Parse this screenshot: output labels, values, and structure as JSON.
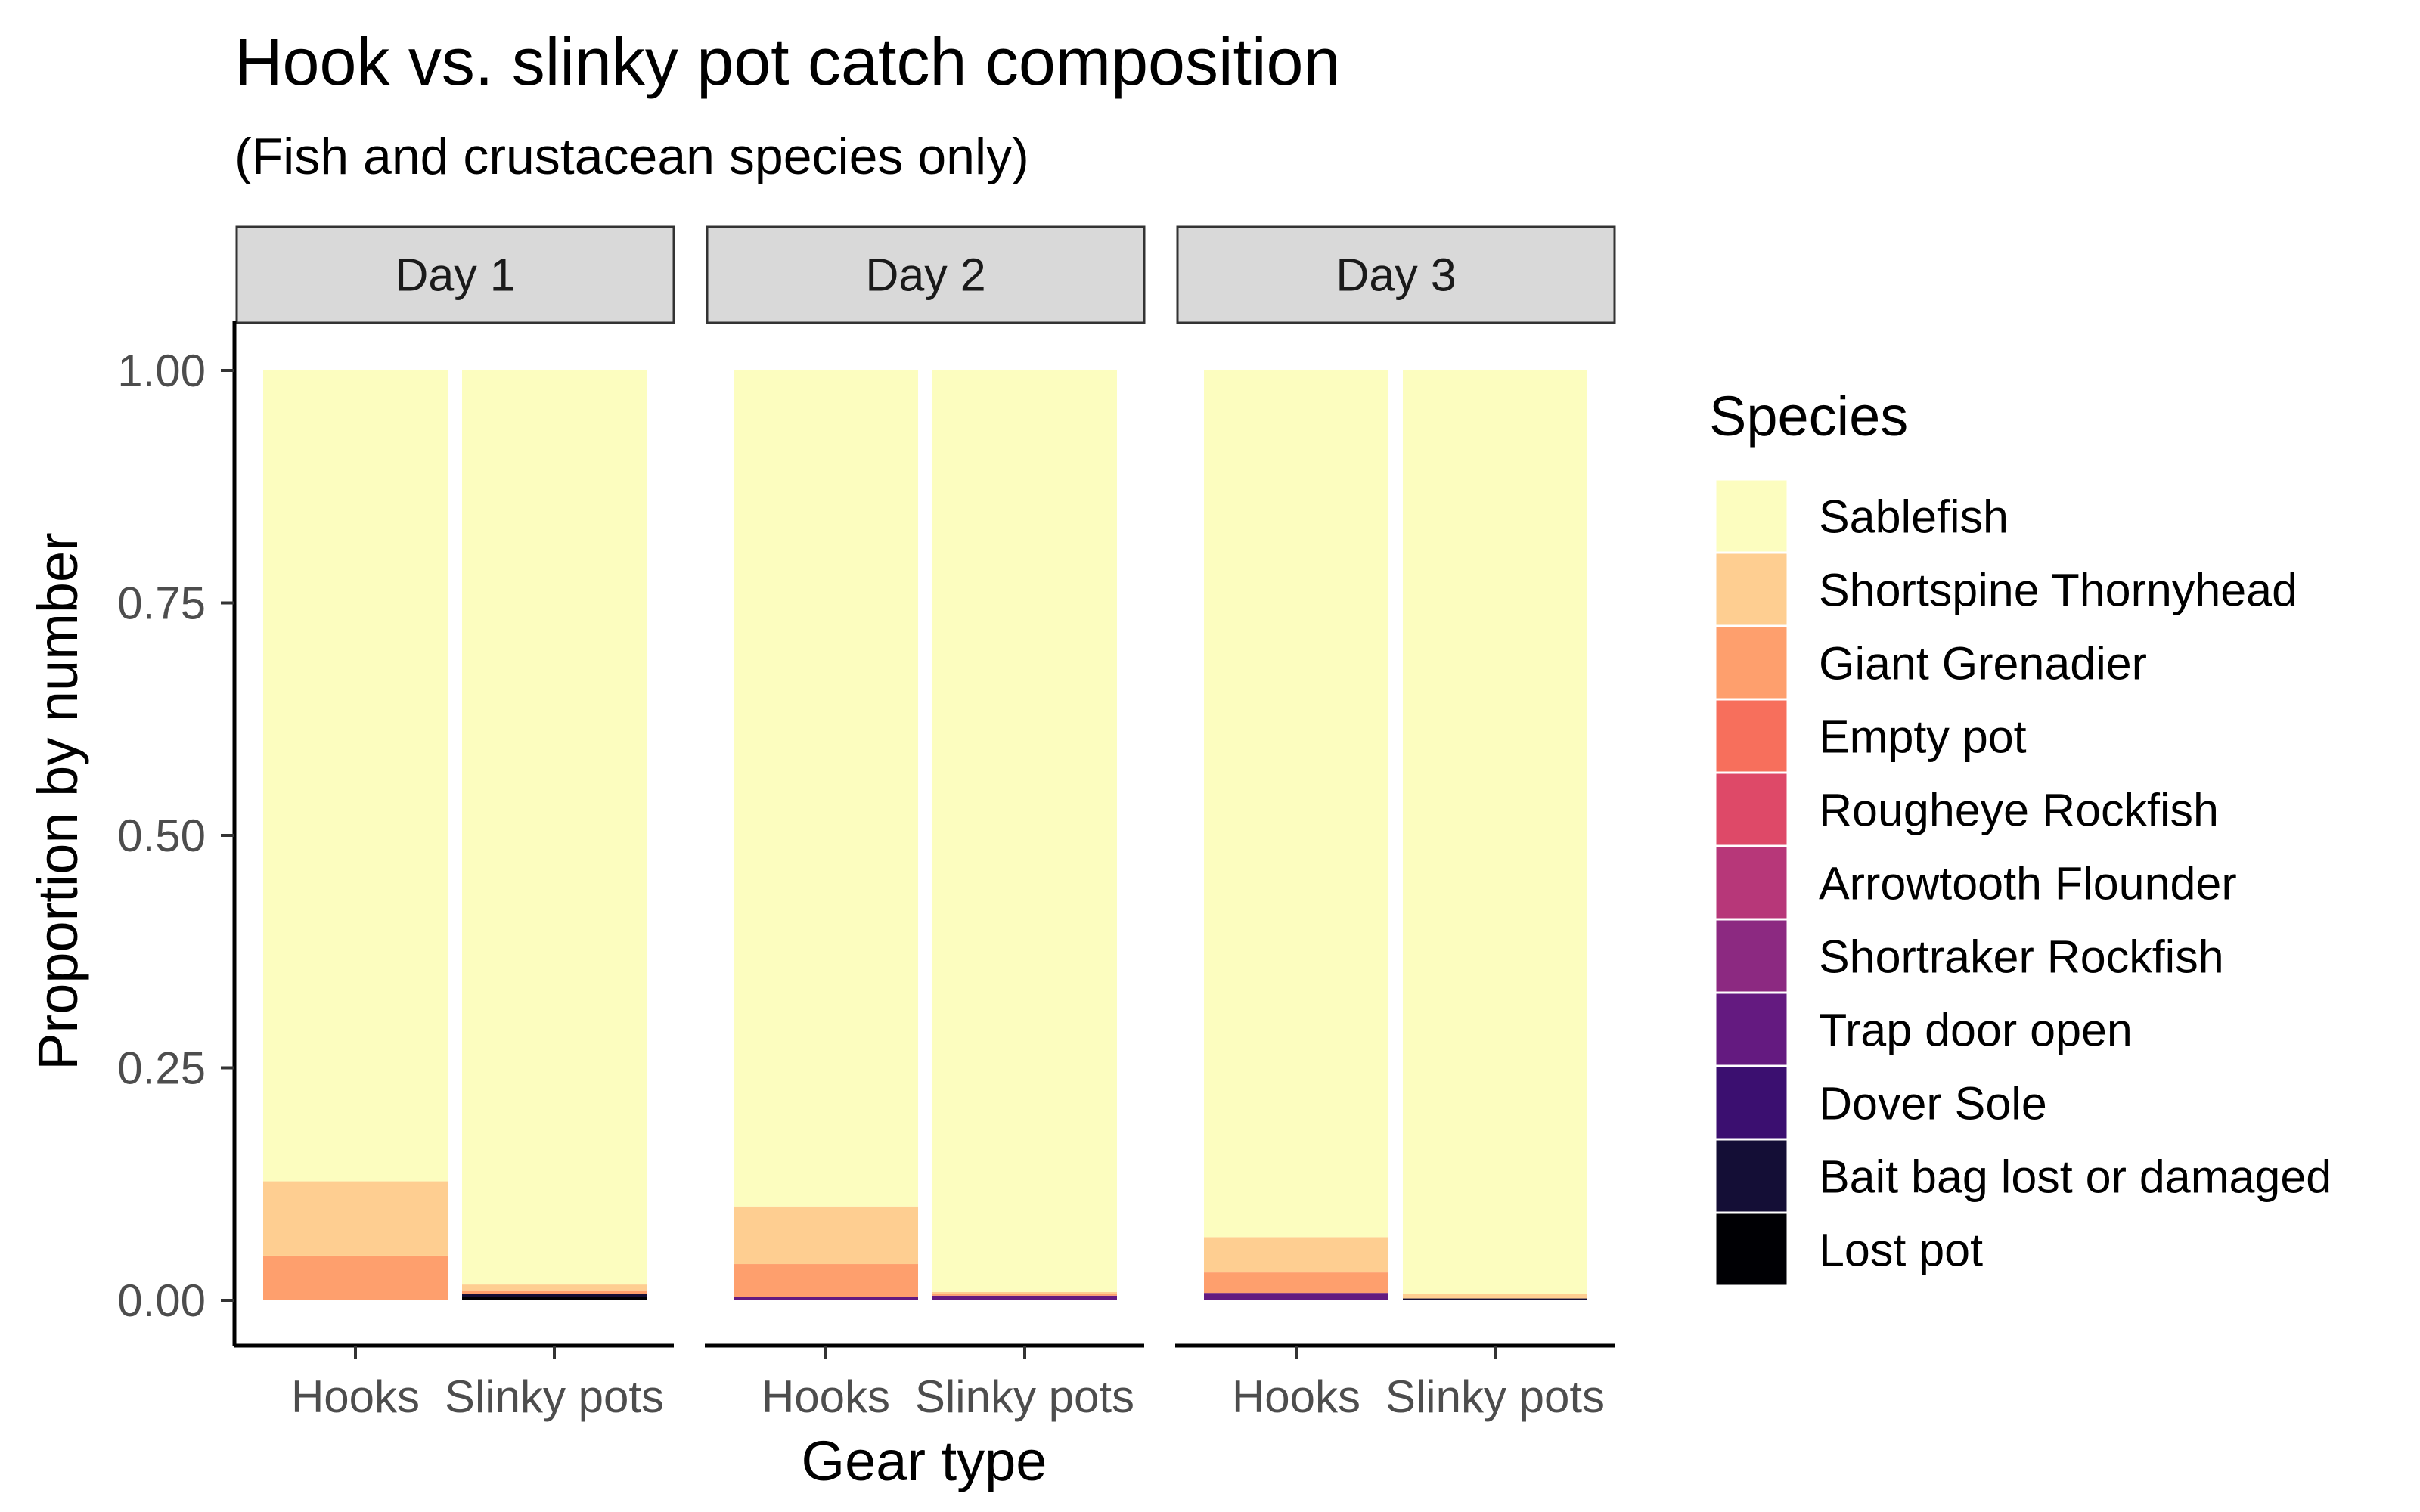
{
  "chart_data": {
    "type": "bar",
    "stacked": true,
    "title": "Hook vs. slinky pot catch composition",
    "subtitle": "(Fish and crustacean species only)",
    "xlabel": "Gear type",
    "ylabel": "Proportion by number",
    "ylim": [
      0,
      1
    ],
    "y_ticks": [
      "0.00",
      "0.25",
      "0.50",
      "0.75",
      "1.00"
    ],
    "categories": [
      "Hooks",
      "Slinky pots"
    ],
    "facets": [
      "Day 1",
      "Day 2",
      "Day 3"
    ],
    "legend_title": "Species",
    "legend_position": "right",
    "grid": false,
    "species": [
      {
        "name": "Sablefish",
        "color": "#FCFDBF"
      },
      {
        "name": "Shortspine Thornyhead",
        "color": "#FECE91"
      },
      {
        "name": "Giant Grenadier",
        "color": "#FE9F6D"
      },
      {
        "name": "Empty pot",
        "color": "#F76F5C"
      },
      {
        "name": "Rougheye Rockfish",
        "color": "#DE4968"
      },
      {
        "name": "Arrowtooth Flounder",
        "color": "#B73779"
      },
      {
        "name": "Shortraker Rockfish",
        "color": "#8C2981"
      },
      {
        "name": "Trap door open",
        "color": "#641A80"
      },
      {
        "name": "Dover Sole",
        "color": "#3B0F70"
      },
      {
        "name": "Bait bag lost or damaged",
        "color": "#140E36"
      },
      {
        "name": "Lost pot",
        "color": "#000004"
      }
    ],
    "values": {
      "Day 1": {
        "Hooks": [
          0.872,
          0.08,
          0.048,
          0,
          0,
          0,
          0,
          0,
          0,
          0,
          0
        ],
        "Slinky pots": [
          0.983,
          0.007,
          0.003,
          0,
          0,
          0,
          0,
          0,
          0,
          0.003,
          0.004
        ]
      },
      "Day 2": {
        "Hooks": [
          0.899,
          0.062,
          0.035,
          0,
          0,
          0,
          0,
          0.004,
          0,
          0,
          0
        ],
        "Slinky pots": [
          0.991,
          0.002,
          0.002,
          0,
          0,
          0,
          0,
          0.005,
          0,
          0,
          0
        ]
      },
      "Day 3": {
        "Hooks": [
          0.932,
          0.038,
          0.022,
          0,
          0,
          0,
          0,
          0.008,
          0,
          0,
          0
        ],
        "Slinky pots": [
          0.993,
          0.005,
          0,
          0,
          0,
          0,
          0,
          0,
          0,
          0.002,
          0
        ]
      }
    }
  }
}
